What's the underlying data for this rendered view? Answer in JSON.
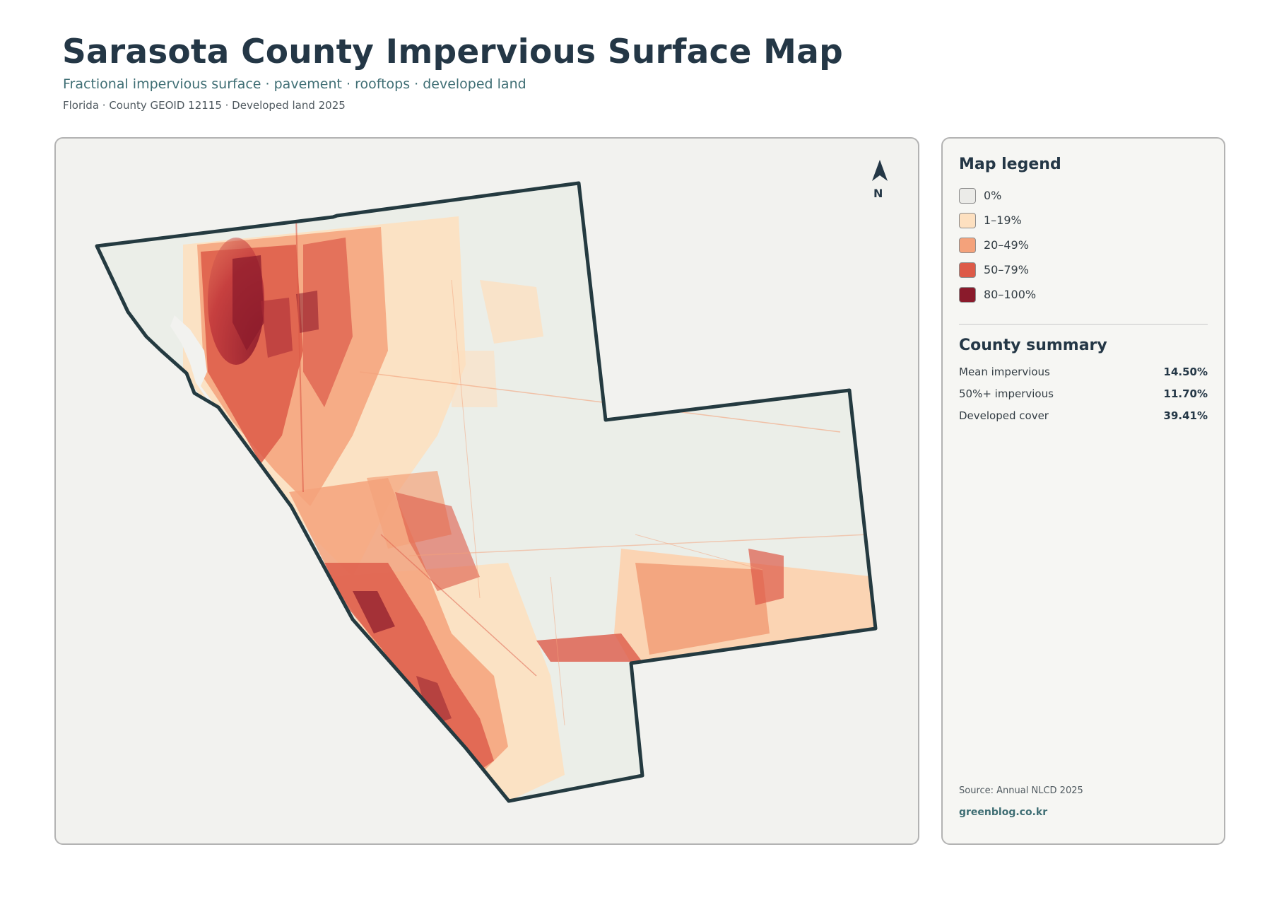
{
  "header": {
    "title": "Sarasota County Impervious Surface Map",
    "subtitle": "Fractional impervious surface · pavement · rooftops · developed land",
    "meta": "Florida · County GEOID 12115 · Developed land 2025"
  },
  "map": {
    "north_label": "N",
    "outline_color": "#243a40",
    "land_color": "#ebeee8"
  },
  "legend": {
    "title": "Map legend",
    "items": [
      {
        "label": "0%",
        "color": "#ebebe8"
      },
      {
        "label": "1–19%",
        "color": "#fde0c0"
      },
      {
        "label": "20–49%",
        "color": "#f4a27b"
      },
      {
        "label": "50–79%",
        "color": "#dd5a48"
      },
      {
        "label": "80–100%",
        "color": "#8a1a2b"
      }
    ]
  },
  "summary": {
    "title": "County summary",
    "stats": [
      {
        "label": "Mean impervious",
        "value": "14.50%"
      },
      {
        "label": "50%+ impervious",
        "value": "11.70%"
      },
      {
        "label": "Developed cover",
        "value": "39.41%"
      }
    ]
  },
  "footer": {
    "source": "Source: Annual NLCD 2025",
    "site": "greenblog.co.kr"
  }
}
